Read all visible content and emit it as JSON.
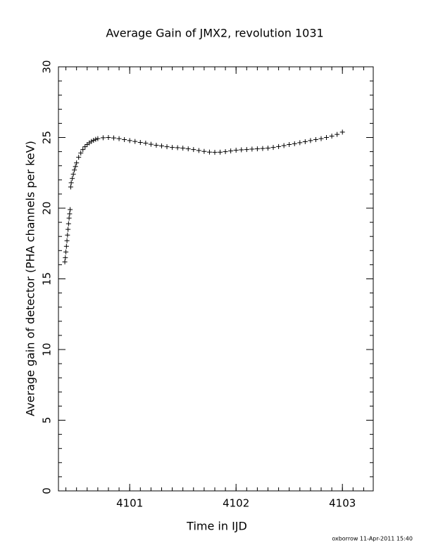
{
  "chart_data": {
    "type": "scatter",
    "title": "Average Gain of JMX2, revolution 1031",
    "x_label": "Time in IJD",
    "y_label": "Average gain of detector (PHA channels per keV)",
    "footnote": "oxborrow 11-Apr-2011 15:40",
    "marker": "+",
    "color": "#000000",
    "xlim": [
      4100.33,
      4103.29
    ],
    "ylim": [
      0,
      30
    ],
    "xticks": [
      4101,
      4102,
      4103
    ],
    "yticks": [
      0,
      5,
      10,
      15,
      20,
      25,
      30
    ],
    "x": [
      4100.39,
      4100.395,
      4100.4,
      4100.405,
      4100.41,
      4100.415,
      4100.42,
      4100.425,
      4100.43,
      4100.435,
      4100.44,
      4100.445,
      4100.45,
      4100.46,
      4100.47,
      4100.48,
      4100.49,
      4100.5,
      4100.52,
      4100.54,
      4100.56,
      4100.58,
      4100.6,
      4100.62,
      4100.64,
      4100.66,
      4100.68,
      4100.7,
      4100.75,
      4100.8,
      4100.85,
      4100.9,
      4100.95,
      4101.0,
      4101.05,
      4101.1,
      4101.15,
      4101.2,
      4101.25,
      4101.3,
      4101.35,
      4101.4,
      4101.45,
      4101.5,
      4101.55,
      4101.6,
      4101.65,
      4101.7,
      4101.75,
      4101.8,
      4101.85,
      4101.9,
      4101.95,
      4102.0,
      4102.05,
      4102.1,
      4102.15,
      4102.2,
      4102.25,
      4102.3,
      4102.35,
      4102.4,
      4102.45,
      4102.5,
      4102.55,
      4102.6,
      4102.65,
      4102.7,
      4102.75,
      4102.8,
      4102.85,
      4102.9,
      4102.95,
      4103.0
    ],
    "values": [
      16.2,
      16.5,
      16.9,
      17.3,
      17.7,
      18.1,
      18.5,
      18.9,
      19.3,
      19.6,
      19.9,
      21.5,
      21.8,
      22.1,
      22.4,
      22.7,
      22.95,
      23.2,
      23.6,
      23.9,
      24.15,
      24.35,
      24.5,
      24.62,
      24.72,
      24.8,
      24.87,
      24.92,
      24.98,
      25.0,
      24.97,
      24.92,
      24.85,
      24.78,
      24.72,
      24.65,
      24.6,
      24.52,
      24.45,
      24.4,
      24.35,
      24.3,
      24.28,
      24.25,
      24.2,
      24.15,
      24.08,
      24.02,
      23.97,
      23.95,
      23.96,
      24.0,
      24.05,
      24.1,
      24.13,
      24.15,
      24.18,
      24.2,
      24.22,
      24.25,
      24.3,
      24.36,
      24.43,
      24.5,
      24.56,
      24.63,
      24.7,
      24.78,
      24.85,
      24.92,
      25.0,
      25.1,
      25.22,
      25.38
    ]
  }
}
